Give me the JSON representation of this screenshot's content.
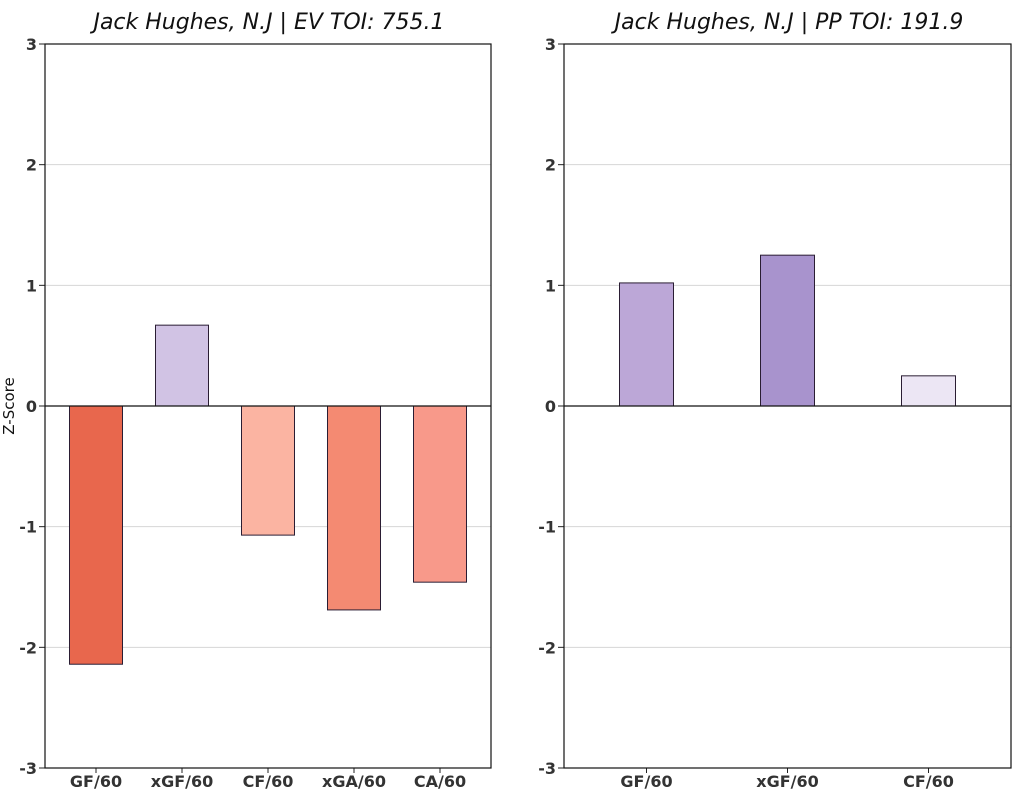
{
  "chart_data": [
    {
      "type": "bar",
      "title": "Jack Hughes, N.J  |  EV TOI: 755.1",
      "ylabel": "Z-Score",
      "xlabel": "",
      "ylim": [
        -3,
        3
      ],
      "yticks": [
        -3,
        -2,
        -1,
        0,
        1,
        2,
        3
      ],
      "grid": "horizontal",
      "categories": [
        "GF/60",
        "xGF/60",
        "CF/60",
        "xGA/60",
        "CA/60"
      ],
      "values": [
        -2.14,
        0.67,
        -1.07,
        -1.69,
        -1.46
      ],
      "colors": [
        "#e8674d",
        "#d1c3e4",
        "#fbb4a2",
        "#f48a72",
        "#f8998a"
      ]
    },
    {
      "type": "bar",
      "title": "Jack Hughes, N.J  |  PP TOI: 191.9",
      "ylabel": "",
      "xlabel": "",
      "ylim": [
        -3,
        3
      ],
      "yticks": [
        -3,
        -2,
        -1,
        0,
        1,
        2,
        3
      ],
      "grid": "horizontal",
      "categories": [
        "GF/60",
        "xGF/60",
        "CF/60"
      ],
      "values": [
        1.02,
        1.25,
        0.25
      ],
      "colors": [
        "#bca7d7",
        "#a893cd",
        "#ece6f4"
      ]
    }
  ]
}
